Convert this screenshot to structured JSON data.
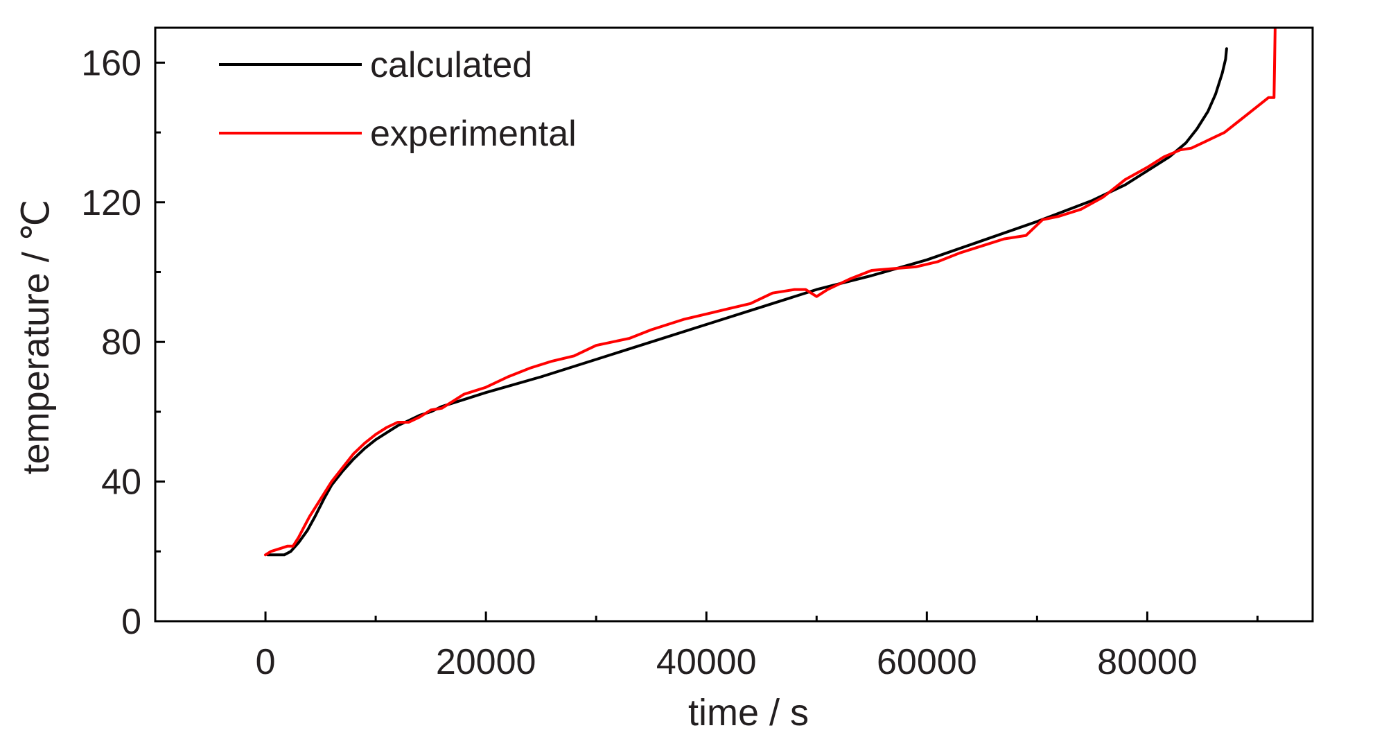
{
  "chart_data": {
    "type": "line",
    "title": "",
    "xlabel": "time / s",
    "ylabel": "temperature / ℃",
    "xlim": [
      -10000,
      95000
    ],
    "ylim": [
      0,
      170
    ],
    "x_ticks": [
      0,
      20000,
      40000,
      60000,
      80000
    ],
    "x_tick_labels": [
      "0",
      "20000",
      "40000",
      "60000",
      "80000"
    ],
    "x_minor_ticks": [
      10000,
      30000,
      50000,
      70000,
      90000
    ],
    "y_ticks": [
      0,
      40,
      80,
      120,
      160
    ],
    "y_tick_labels": [
      "0",
      "40",
      "80",
      "120",
      "160"
    ],
    "y_minor_ticks": [
      20,
      60,
      100,
      140
    ],
    "grid": false,
    "legend": "top-left",
    "series": [
      {
        "name": "calculated",
        "color": "#000000",
        "points": [
          [
            200,
            19
          ],
          [
            1000,
            19
          ],
          [
            1700,
            19
          ],
          [
            2300,
            20
          ],
          [
            3000,
            22.5
          ],
          [
            3800,
            26
          ],
          [
            4500,
            30
          ],
          [
            5300,
            35
          ],
          [
            6000,
            39
          ],
          [
            7000,
            43
          ],
          [
            8000,
            46.5
          ],
          [
            9000,
            49.5
          ],
          [
            10000,
            52
          ],
          [
            11000,
            54
          ],
          [
            12000,
            56
          ],
          [
            13000,
            57.5
          ],
          [
            14000,
            59
          ],
          [
            15000,
            60
          ],
          [
            16000,
            61.5
          ],
          [
            18000,
            63.5
          ],
          [
            20000,
            65.5
          ],
          [
            25000,
            70
          ],
          [
            30000,
            75
          ],
          [
            35000,
            80
          ],
          [
            40000,
            85
          ],
          [
            45000,
            90
          ],
          [
            50000,
            95
          ],
          [
            55000,
            99
          ],
          [
            60000,
            103.5
          ],
          [
            65000,
            109
          ],
          [
            70000,
            114.5
          ],
          [
            75000,
            120.5
          ],
          [
            78000,
            125
          ],
          [
            80000,
            129
          ],
          [
            82000,
            133
          ],
          [
            83500,
            137
          ],
          [
            84500,
            141
          ],
          [
            85500,
            146
          ],
          [
            86200,
            151
          ],
          [
            86800,
            157
          ],
          [
            87100,
            161
          ],
          [
            87200,
            164
          ]
        ]
      },
      {
        "name": "experimental",
        "color": "#ff0000",
        "points": [
          [
            0,
            19
          ],
          [
            500,
            20
          ],
          [
            1000,
            20.5
          ],
          [
            1500,
            21
          ],
          [
            2000,
            21.5
          ],
          [
            2500,
            21.5
          ],
          [
            3000,
            24
          ],
          [
            3500,
            27
          ],
          [
            4000,
            30
          ],
          [
            5000,
            35
          ],
          [
            6000,
            40
          ],
          [
            7000,
            44
          ],
          [
            8000,
            48
          ],
          [
            9000,
            51
          ],
          [
            10000,
            53.5
          ],
          [
            11000,
            55.5
          ],
          [
            12000,
            57
          ],
          [
            13000,
            57
          ],
          [
            14000,
            58.5
          ],
          [
            15000,
            60.5
          ],
          [
            16000,
            61
          ],
          [
            17000,
            63
          ],
          [
            18000,
            65
          ],
          [
            20000,
            67
          ],
          [
            22000,
            70
          ],
          [
            24000,
            72.5
          ],
          [
            26000,
            74.5
          ],
          [
            28000,
            76
          ],
          [
            30000,
            79
          ],
          [
            33000,
            81
          ],
          [
            35000,
            83.5
          ],
          [
            38000,
            86.5
          ],
          [
            40000,
            88
          ],
          [
            42000,
            89.5
          ],
          [
            44000,
            91
          ],
          [
            46000,
            94
          ],
          [
            48000,
            95
          ],
          [
            49000,
            95
          ],
          [
            50000,
            93
          ],
          [
            51000,
            95
          ],
          [
            53000,
            98
          ],
          [
            55000,
            100.5
          ],
          [
            57000,
            101
          ],
          [
            59000,
            101.5
          ],
          [
            61000,
            103
          ],
          [
            63000,
            105.5
          ],
          [
            65000,
            107.5
          ],
          [
            67000,
            109.5
          ],
          [
            69000,
            110.5
          ],
          [
            70500,
            115
          ],
          [
            72000,
            116
          ],
          [
            74000,
            118
          ],
          [
            76000,
            121.5
          ],
          [
            78000,
            126.5
          ],
          [
            80000,
            130
          ],
          [
            81500,
            133
          ],
          [
            83000,
            135
          ],
          [
            84000,
            135.5
          ],
          [
            85000,
            137
          ],
          [
            86000,
            138.5
          ],
          [
            87000,
            140
          ],
          [
            88000,
            142.5
          ],
          [
            89000,
            145
          ],
          [
            90000,
            147.5
          ],
          [
            91000,
            150
          ],
          [
            91500,
            150
          ],
          [
            91600,
            170
          ]
        ]
      }
    ]
  }
}
